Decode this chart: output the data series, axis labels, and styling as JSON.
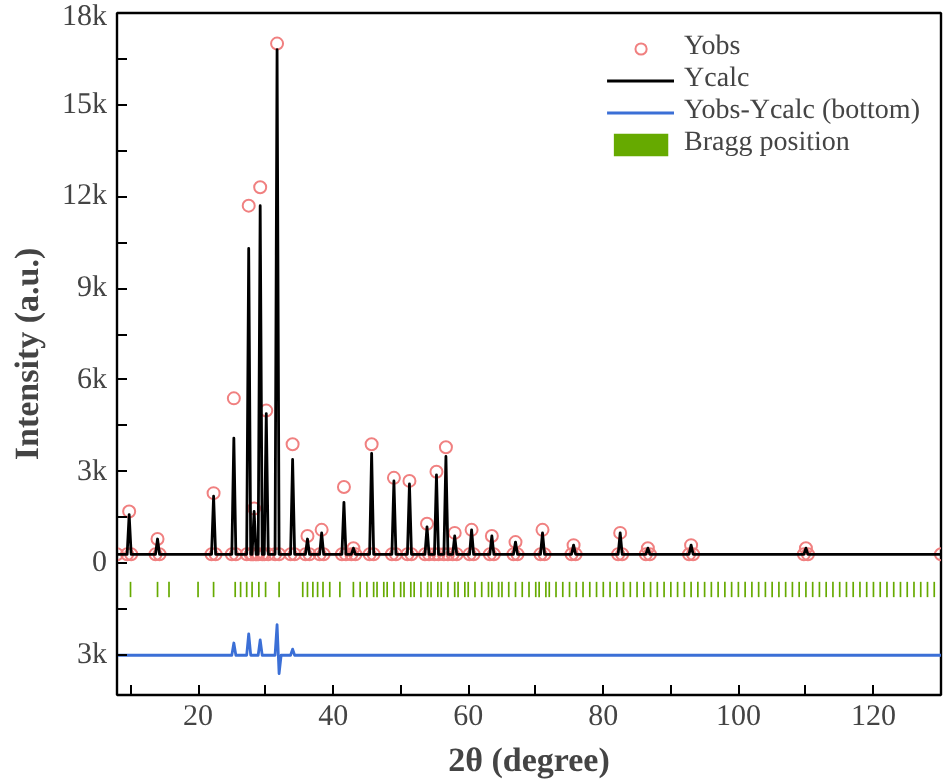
{
  "chart_data": {
    "type": "line",
    "xlabel": "2θ (degree)",
    "ylabel": "Intensity (a.u.)",
    "xlim": [
      8,
      130
    ],
    "ylim": [
      -4300,
      18000
    ],
    "xticks": [
      {
        "value": 10,
        "label": null
      },
      20,
      {
        "value": 30,
        "label": null
      },
      40,
      {
        "value": 50,
        "label": null
      },
      60,
      {
        "value": 70,
        "label": null
      },
      80,
      {
        "value": 90,
        "label": null
      },
      100,
      {
        "value": 110,
        "label": null
      },
      120,
      {
        "value": 130,
        "label": null
      }
    ],
    "yticks": [
      {
        "value": -3000,
        "label": "3k"
      },
      {
        "value": -1500,
        "label": null
      },
      0,
      {
        "value": 1500,
        "label": null
      },
      {
        "value": 3000,
        "label": "3k"
      },
      {
        "value": 4500,
        "label": null
      },
      {
        "value": 6000,
        "label": "6k"
      },
      {
        "value": 7500,
        "label": null
      },
      {
        "value": 9000,
        "label": "9k"
      },
      {
        "value": 10500,
        "label": null
      },
      {
        "value": 12000,
        "label": "12k"
      },
      {
        "value": 13500,
        "label": null
      },
      {
        "value": 15000,
        "label": "15k"
      },
      {
        "value": 16500,
        "label": null
      },
      {
        "value": 18000,
        "label": "18k"
      }
    ],
    "grid": false,
    "legend": "top right",
    "series": [
      {
        "name": "Yobs",
        "type": "scatter",
        "marker": "circle",
        "color": "#f08080",
        "x": [
          8,
          9.5,
          9.8,
          10.1,
          13.7,
          14,
          14.3,
          22,
          22.3,
          22.6,
          25,
          25.3,
          25.6,
          27.2,
          27.5,
          27.8,
          28,
          28.3,
          28.6,
          28.9,
          29.2,
          29.5,
          29.8,
          30.1,
          30.4,
          31.4,
          31.7,
          32,
          33.7,
          34,
          34.3,
          35.9,
          36.2,
          36.5,
          38,
          38.3,
          38.6,
          41.3,
          41.6,
          41.9,
          42.7,
          43,
          43.3,
          45.4,
          45.7,
          46,
          48.7,
          49,
          49.3,
          51,
          51.3,
          51.6,
          53.6,
          53.9,
          54.2,
          55,
          55.3,
          55.6,
          56.4,
          56.7,
          57,
          57.7,
          58,
          58.3,
          60.2,
          60.5,
          60.8,
          63.2,
          63.5,
          63.8,
          66.7,
          67,
          67.3,
          70.7,
          71,
          71.3,
          75.3,
          75.6,
          75.9,
          82.2,
          82.5,
          82.8,
          86.3,
          86.6,
          86.9,
          92.7,
          93,
          93.3,
          109.7,
          110,
          110.3,
          130
        ],
        "values": [
          300,
          300,
          1700,
          300,
          300,
          800,
          300,
          300,
          2300,
          300,
          300,
          5400,
          300,
          300,
          11700,
          300,
          300,
          1800,
          300,
          300,
          12300,
          300,
          300,
          5000,
          300,
          300,
          17000,
          300,
          300,
          3900,
          300,
          300,
          900,
          300,
          300,
          1100,
          300,
          300,
          2500,
          300,
          300,
          500,
          300,
          300,
          3900,
          300,
          300,
          2800,
          300,
          300,
          2700,
          300,
          300,
          1300,
          300,
          300,
          3000,
          300,
          300,
          3800,
          300,
          300,
          1000,
          300,
          300,
          1100,
          300,
          300,
          900,
          300,
          300,
          700,
          300,
          300,
          1100,
          300,
          300,
          600,
          300,
          300,
          1000,
          300,
          300,
          500,
          300,
          300,
          600,
          300,
          300,
          500,
          300,
          300
        ]
      },
      {
        "name": "Ycalc",
        "color": "#000000",
        "x": [
          8,
          9.5,
          9.8,
          10.1,
          13.7,
          14,
          14.3,
          22,
          22.3,
          22.6,
          25,
          25.3,
          25.6,
          27.2,
          27.5,
          27.8,
          28,
          28.3,
          28.6,
          28.9,
          29.2,
          29.5,
          29.8,
          30.1,
          30.4,
          31.4,
          31.7,
          32,
          33.7,
          34,
          34.3,
          35.9,
          36.2,
          36.5,
          38,
          38.3,
          38.6,
          41.3,
          41.6,
          41.9,
          42.7,
          43,
          43.3,
          45.4,
          45.7,
          46,
          48.7,
          49,
          49.3,
          51,
          51.3,
          51.6,
          53.6,
          53.9,
          54.2,
          55,
          55.3,
          55.6,
          56.4,
          56.7,
          57,
          57.7,
          58,
          58.3,
          60.2,
          60.5,
          60.8,
          63.2,
          63.5,
          63.8,
          66.7,
          67,
          67.3,
          70.7,
          71,
          71.3,
          75.3,
          75.6,
          75.9,
          82.2,
          82.5,
          82.8,
          86.3,
          86.6,
          86.9,
          92.7,
          93,
          93.3,
          109.7,
          110,
          110.3,
          130
        ],
        "values": [
          300,
          300,
          1600,
          300,
          300,
          800,
          300,
          300,
          2200,
          300,
          300,
          4100,
          300,
          300,
          10300,
          300,
          300,
          1700,
          300,
          300,
          11700,
          300,
          300,
          4900,
          300,
          300,
          16800,
          300,
          300,
          3400,
          300,
          300,
          800,
          300,
          300,
          1000,
          300,
          300,
          2000,
          300,
          300,
          500,
          300,
          300,
          3600,
          300,
          300,
          2700,
          300,
          300,
          2600,
          300,
          300,
          1200,
          300,
          300,
          2900,
          300,
          300,
          3500,
          300,
          300,
          900,
          300,
          300,
          1100,
          300,
          300,
          900,
          300,
          300,
          700,
          300,
          300,
          1000,
          300,
          300,
          600,
          300,
          300,
          1000,
          300,
          300,
          500,
          300,
          300,
          600,
          300,
          300,
          500,
          300,
          300
        ]
      },
      {
        "name": "Yobs-Ycalc (bottom)",
        "color": "#3b6fd6",
        "x": [
          8,
          25,
          25.3,
          25.6,
          27.2,
          27.5,
          27.8,
          28.9,
          29.2,
          29.5,
          31.4,
          31.7,
          32,
          32.3,
          33.7,
          34,
          34.3,
          130
        ],
        "values": [
          -3000,
          -3000,
          -2600,
          -3000,
          -3000,
          -2300,
          -3000,
          -3000,
          -2500,
          -3000,
          -3000,
          -2000,
          -3600,
          -3000,
          -3000,
          -2800,
          -3000,
          -3000
        ]
      },
      {
        "name": "Bragg position",
        "type": "bar",
        "color": "#66aa00",
        "x": [
          10,
          14,
          15.7,
          20,
          22.3,
          25.5,
          26.3,
          27.2,
          28,
          29,
          30,
          32,
          35.5,
          36.2,
          37,
          37.7,
          38.5,
          39.5,
          41,
          43,
          44,
          45,
          46,
          46.5,
          47.5,
          48,
          49,
          50,
          50.5,
          51.5,
          52,
          53,
          54,
          54.5,
          55.5,
          56,
          57,
          58,
          58.5,
          59.5,
          60,
          61,
          62,
          63,
          63.5,
          64.5,
          65,
          66,
          67,
          68,
          69,
          70,
          70.5,
          71.5,
          72,
          73,
          74,
          75,
          76,
          77,
          78,
          79,
          80,
          81,
          82,
          83,
          84,
          85,
          86,
          87,
          88,
          89,
          90,
          91,
          92,
          93,
          94,
          95,
          96,
          97,
          98,
          99,
          100,
          101,
          102,
          103,
          104,
          105,
          106,
          107,
          108,
          109,
          110,
          111,
          112,
          113,
          114,
          115,
          116,
          117,
          118,
          119,
          120,
          121,
          122,
          123,
          124,
          125,
          126,
          127,
          128,
          129
        ],
        "values": [
          500,
          500,
          500,
          500,
          500,
          500,
          500,
          500,
          500,
          500,
          500,
          500,
          500,
          500,
          500,
          500,
          500,
          500,
          500,
          500,
          500,
          500,
          500,
          500,
          500,
          500,
          500,
          500,
          500,
          500,
          500,
          500,
          500,
          500,
          500,
          500,
          500,
          500,
          500,
          500,
          500,
          500,
          500,
          500,
          500,
          500,
          500,
          500,
          500,
          500,
          500,
          500,
          500,
          500,
          500,
          500,
          500,
          500,
          500,
          500,
          500,
          500,
          500,
          500,
          500,
          500,
          500,
          500,
          500,
          500,
          500,
          500,
          500,
          500,
          500,
          500,
          500,
          500,
          500,
          500,
          500,
          500,
          500,
          500,
          500,
          500,
          500,
          500,
          500,
          500,
          500,
          500,
          500,
          500,
          500,
          500,
          500,
          500,
          500,
          500,
          500,
          500,
          500,
          500,
          500,
          500,
          500,
          500,
          500,
          500,
          500,
          500
        ],
        "base": [
          -1100,
          -1100,
          -1100,
          -1100,
          -1100,
          -1100,
          -1100,
          -1100,
          -1100,
          -1100,
          -1100,
          -1100,
          -1100,
          -1100,
          -1100,
          -1100,
          -1100,
          -1100,
          -1100,
          -1100,
          -1100,
          -1100,
          -1100,
          -1100,
          -1100,
          -1100,
          -1100,
          -1100,
          -1100,
          -1100,
          -1100,
          -1100,
          -1100,
          -1100,
          -1100,
          -1100,
          -1100,
          -1100,
          -1100,
          -1100,
          -1100,
          -1100,
          -1100,
          -1100,
          -1100,
          -1100,
          -1100,
          -1100,
          -1100,
          -1100,
          -1100,
          -1100,
          -1100,
          -1100,
          -1100,
          -1100,
          -1100,
          -1100,
          -1100,
          -1100,
          -1100,
          -1100,
          -1100,
          -1100,
          -1100,
          -1100,
          -1100,
          -1100,
          -1100,
          -1100,
          -1100,
          -1100,
          -1100,
          -1100,
          -1100,
          -1100,
          -1100,
          -1100,
          -1100,
          -1100,
          -1100,
          -1100,
          -1100,
          -1100,
          -1100,
          -1100,
          -1100,
          -1100,
          -1100,
          -1100,
          -1100,
          -1100,
          -1100,
          -1100,
          -1100,
          -1100,
          -1100,
          -1100,
          -1100,
          -1100,
          -1100,
          -1100,
          -1100,
          -1100,
          -1100,
          -1100,
          -1100,
          -1100,
          -1100,
          -1100,
          -1100,
          -1100
        ]
      }
    ]
  }
}
